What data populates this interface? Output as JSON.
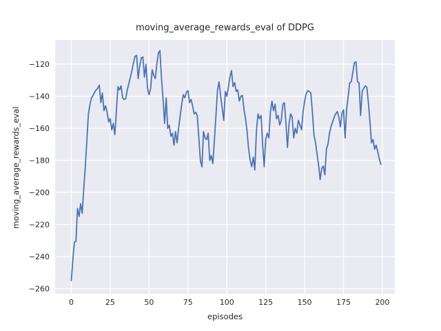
{
  "figure": {
    "background": "#ffffff",
    "axes_background": "#eaeaf2",
    "grid_color": "#ffffff",
    "text_color": "#262626"
  },
  "chart_data": {
    "type": "line",
    "title": "moving_average_rewards_eval of DDPG",
    "xlabel": "episodes",
    "ylabel": "moving_average_rewards_eval",
    "grid": true,
    "legend": null,
    "xlim": [
      -10.4,
      208.0
    ],
    "ylim": [
      -263.2,
      -104.9
    ],
    "xticks": [
      0,
      25,
      50,
      75,
      100,
      125,
      150,
      175,
      200
    ],
    "xtick_labels": [
      "0",
      "25",
      "50",
      "75",
      "100",
      "125",
      "150",
      "175",
      "200"
    ],
    "yticks": [
      -260,
      -240,
      -220,
      -200,
      -180,
      -160,
      -140,
      -120
    ],
    "ytick_labels": [
      "−260",
      "−240",
      "−220",
      "−200",
      "−180",
      "−160",
      "−140",
      "−120"
    ],
    "series": [
      {
        "name": "moving_average_rewards_eval",
        "color": "#4c72b0",
        "x_start": 0,
        "x_step": 1,
        "values": [
          -255,
          -242,
          -231,
          -230.5,
          -210,
          -215,
          -207,
          -213,
          -198,
          -184,
          -168,
          -151,
          -145,
          -141,
          -139.5,
          -137.5,
          -136,
          -135,
          -133,
          -144,
          -138,
          -149,
          -146,
          -150,
          -156,
          -154,
          -161,
          -157,
          -164,
          -149,
          -134,
          -136,
          -133.5,
          -141,
          -142,
          -141.5,
          -136,
          -132,
          -128,
          -124,
          -119,
          -115,
          -114.5,
          -129,
          -121,
          -116,
          -115.5,
          -128,
          -120,
          -135,
          -139,
          -135,
          -123.5,
          -127,
          -129,
          -120,
          -113,
          -111.5,
          -129,
          -142,
          -157,
          -141,
          -160,
          -158,
          -165,
          -163,
          -170.5,
          -162,
          -169,
          -160,
          -152,
          -145,
          -139,
          -141,
          -137.5,
          -136.5,
          -144,
          -142,
          -146,
          -151,
          -150,
          -152,
          -166,
          -180,
          -184,
          -162,
          -166,
          -167,
          -163,
          -180,
          -177,
          -182,
          -167,
          -152,
          -136,
          -131,
          -140,
          -147,
          -155,
          -137,
          -140,
          -134,
          -128,
          -124,
          -134,
          -131.5,
          -137,
          -136,
          -143,
          -140,
          -139.5,
          -148,
          -154,
          -162,
          -173,
          -180,
          -184,
          -178,
          -186,
          -162,
          -151,
          -154,
          -152,
          -170,
          -184,
          -167,
          -163,
          -166,
          -150,
          -143,
          -149,
          -145,
          -154,
          -152,
          -158,
          -155,
          -145,
          -144,
          -157,
          -172,
          -157,
          -151,
          -153,
          -166,
          -160,
          -163,
          -155,
          -158,
          -161,
          -150,
          -143,
          -138.5,
          -136.5,
          -137,
          -138,
          -150,
          -164,
          -169,
          -176,
          -183,
          -192,
          -185,
          -183.5,
          -189,
          -173,
          -170,
          -163,
          -159,
          -156,
          -153,
          -151,
          -149.5,
          -153,
          -159,
          -150.5,
          -148.5,
          -166,
          -148.5,
          -140,
          -131.5,
          -131,
          -125,
          -119,
          -118.5,
          -131,
          -131.5,
          -152,
          -137,
          -135,
          -133.5,
          -134.5,
          -144,
          -156,
          -169,
          -167,
          -173,
          -170.5,
          -174.5,
          -179,
          -182.5
        ]
      }
    ]
  }
}
